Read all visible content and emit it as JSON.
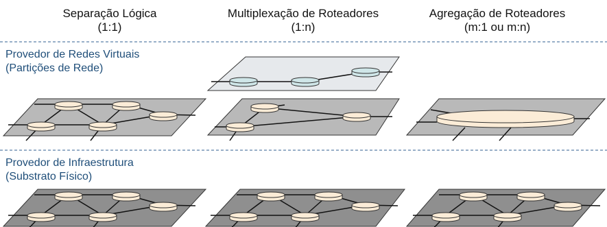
{
  "columns": [
    {
      "title": "Separação Lógica",
      "subtitle": "(1:1)"
    },
    {
      "title": "Multiplexação de Roteadores",
      "subtitle": "(1:n)"
    },
    {
      "title": "Agregação de Roteadores",
      "subtitle": "(m:1 ou m:n)"
    }
  ],
  "layers": {
    "virtual": {
      "line1": "Provedor de Redes Virtuais",
      "line2": "(Partições de Rede)"
    },
    "infra": {
      "line1": "Provedor de Infraestrutura",
      "line2": "(Substrato Físico)"
    }
  },
  "colors": {
    "layer_label": "#1f4e79",
    "divider": "#5b7fa6",
    "plane_light": "#e6e9ec",
    "plane_mid": "#b9b9b9",
    "plane_dark": "#8f8f8f",
    "router_cream": "#fbecd7",
    "router_teal": "#cfe6e8"
  }
}
